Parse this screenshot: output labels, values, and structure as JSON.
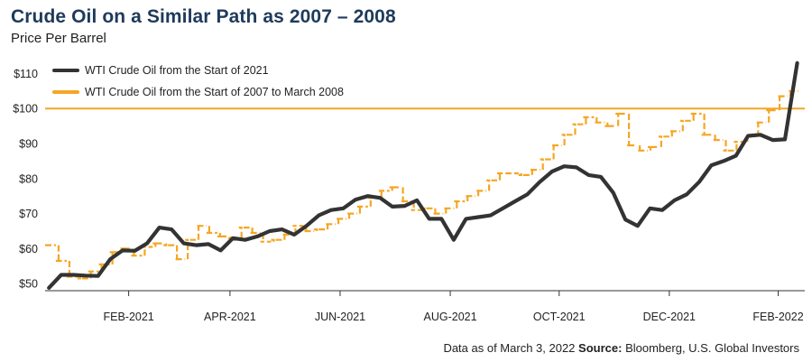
{
  "header": {
    "title": "Crude Oil on a Similar Path as 2007 – 2008",
    "subtitle": "Price Per Barrel"
  },
  "footer": {
    "note": "Data as of March 3, 2022",
    "source_label": "Source:",
    "source_text": "Bloomberg, U.S. Global Investors"
  },
  "colors": {
    "wti_2021": "#333333",
    "wti_2007": "#f5a623"
  },
  "chart_data": {
    "type": "line",
    "title": "Crude Oil on a Similar Path as 2007 – 2008",
    "subtitle": "Price Per Barrel",
    "ylim": [
      48,
      115
    ],
    "yticks": [
      50,
      60,
      70,
      80,
      90,
      100,
      110
    ],
    "ytick_labels": [
      "$50",
      "$60",
      "$70",
      "$80",
      "$90",
      "$100",
      "$110"
    ],
    "xlim": [
      0,
      60
    ],
    "xticks": [
      {
        "x": 6.6,
        "label": "FEB-2021"
      },
      {
        "x": 14.6,
        "label": "APR-2021"
      },
      {
        "x": 23.3,
        "label": "JUN-2021"
      },
      {
        "x": 32.0,
        "label": "AUG-2021"
      },
      {
        "x": 40.6,
        "label": "OCT-2021"
      },
      {
        "x": 49.3,
        "label": "DEC-2021"
      },
      {
        "x": 57.9,
        "label": "FEB-2022"
      }
    ],
    "x_unit": "weeks from start",
    "legend_position": "top-left",
    "reference_line": {
      "y": 100
    },
    "series": [
      {
        "name": "WTI Crude Oil from the Start of 2021",
        "style": "line",
        "values": [
          48.8,
          52.5,
          52.5,
          52.3,
          52.2,
          57.0,
          59.5,
          59.4,
          61.5,
          66.0,
          65.5,
          61.5,
          61.0,
          61.3,
          59.5,
          63.0,
          62.5,
          63.5,
          65.0,
          65.5,
          64.0,
          66.5,
          69.5,
          71.0,
          71.5,
          74.0,
          75.0,
          74.5,
          72.0,
          72.2,
          73.8,
          68.5,
          68.5,
          62.5,
          68.5,
          69.0,
          69.5,
          71.5,
          73.5,
          75.5,
          79.0,
          82.0,
          83.5,
          83.2,
          81.0,
          80.5,
          76.0,
          68.3,
          66.5,
          71.5,
          71.0,
          73.8,
          75.5,
          79.0,
          83.8,
          85.0,
          86.5,
          92.2,
          92.5,
          91.0,
          91.2,
          113.0
        ]
      },
      {
        "name": "WTI Crude Oil from the Start of 2007 to March 2008",
        "style": "step",
        "values": [
          61.0,
          56.5,
          52.0,
          51.5,
          53.5,
          55.5,
          59.0,
          60.0,
          58.0,
          60.5,
          61.5,
          61.0,
          57.0,
          62.5,
          66.5,
          64.5,
          63.5,
          63.0,
          66.0,
          64.5,
          62.0,
          62.5,
          64.0,
          66.5,
          65.0,
          65.5,
          67.0,
          68.5,
          70.0,
          72.0,
          74.5,
          76.5,
          77.5,
          73.5,
          71.0,
          71.5,
          70.0,
          71.5,
          73.5,
          75.0,
          76.5,
          79.5,
          81.5,
          81.5,
          81.0,
          82.5,
          85.5,
          89.5,
          92.5,
          95.5,
          97.5,
          96.0,
          95.0,
          98.5,
          89.5,
          88.0,
          89.0,
          92.0,
          93.5,
          96.5,
          98.5,
          92.5,
          91.0,
          88.0,
          90.5,
          92.0,
          96.0,
          99.5,
          103.5,
          105.0
        ]
      }
    ]
  }
}
